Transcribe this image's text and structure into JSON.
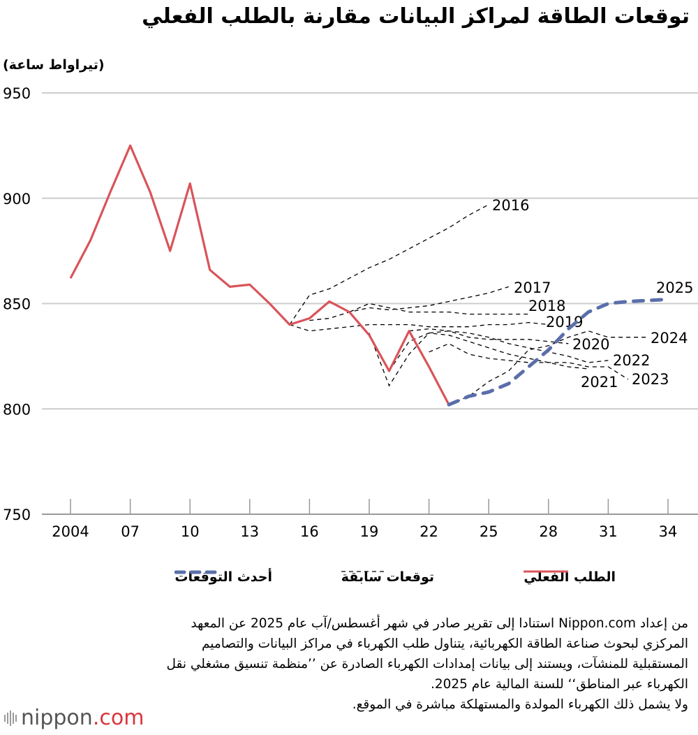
{
  "title": "توقعات الطاقة لمراكز البيانات مقارنة بالطلب الفعلي",
  "unit_label": "(تيراواط ساعة)",
  "chart_data": {
    "type": "line",
    "title": "توقعات الطاقة لمراكز البيانات مقارنة بالطلب الفعلي",
    "ylabel": "(تيراواط ساعة)",
    "ylim": [
      750,
      950
    ],
    "yticks": [
      950,
      900,
      850,
      800,
      750
    ],
    "xlim": [
      2002.9,
      2035.5
    ],
    "xticks": [
      2004,
      2007,
      2010,
      2013,
      2016,
      2019,
      2022,
      2025,
      2028,
      2031,
      2034
    ],
    "xtick_labels": [
      "2004",
      "07",
      "10",
      "13",
      "16",
      "19",
      "22",
      "25",
      "28",
      "31",
      "34"
    ],
    "grid": "horizontal",
    "colors": {
      "actual": "#d9545a",
      "latest": "#5a6eaa",
      "previous": "#000000",
      "grid": "#cccccc"
    },
    "actual": {
      "name": "الطلب الفعلي",
      "x": [
        2004,
        2005,
        2006,
        2007,
        2008,
        2009,
        2010,
        2011,
        2012,
        2013,
        2014,
        2015,
        2016,
        2017,
        2018,
        2019,
        2020,
        2021,
        2022,
        2023
      ],
      "y": [
        862,
        880,
        903,
        925,
        903,
        875,
        907,
        866,
        858,
        859,
        850,
        840,
        843,
        851,
        846,
        835,
        818,
        837,
        820,
        802
      ]
    },
    "latest": {
      "name": "أحدث التوقعات",
      "label": "2025",
      "x": [
        2023,
        2024,
        2025,
        2026,
        2027,
        2028,
        2029,
        2030,
        2031,
        2032,
        2033,
        2034
      ],
      "y": [
        802,
        806,
        808,
        812,
        820,
        828,
        838,
        846,
        850,
        851,
        851.5,
        852
      ]
    },
    "previous_name": "توقعات سابقة",
    "previous": [
      {
        "label": "2016",
        "x": [
          2015,
          2016,
          2017,
          2018,
          2019,
          2020,
          2021,
          2022,
          2023,
          2024,
          2025
        ],
        "y": [
          840,
          854,
          857,
          862,
          867,
          871,
          876,
          881,
          886,
          892,
          897
        ]
      },
      {
        "label": "2017",
        "x": [
          2016,
          2017,
          2018,
          2019,
          2020,
          2021,
          2022,
          2023,
          2024,
          2025,
          2026
        ],
        "y": [
          842,
          843,
          846,
          848,
          847,
          848,
          849,
          851,
          853,
          855,
          858
        ]
      },
      {
        "label": "2018",
        "x": [
          2017,
          2018,
          2019,
          2020,
          2021,
          2022,
          2023,
          2024,
          2025,
          2026,
          2027
        ],
        "y": [
          851,
          846,
          850,
          848,
          846,
          846,
          846,
          845,
          845,
          845,
          845
        ]
      },
      {
        "label": "2019",
        "x": [
          2015,
          2016,
          2017,
          2018,
          2019,
          2020,
          2021,
          2022,
          2023,
          2024,
          2025,
          2026,
          2027,
          2028
        ],
        "y": [
          840,
          837,
          838,
          839,
          840,
          840,
          840,
          839,
          839,
          839,
          840,
          840,
          841,
          840
        ]
      },
      {
        "label": "2020",
        "x": [
          2019,
          2020,
          2021,
          2022,
          2023,
          2024,
          2025,
          2026,
          2027,
          2028,
          2029
        ],
        "y": [
          836,
          811,
          826,
          836,
          837,
          834,
          833,
          833,
          833,
          832,
          831
        ]
      },
      {
        "label": "2021",
        "x": [
          2020,
          2021,
          2022,
          2023,
          2024,
          2025,
          2026,
          2027,
          2028,
          2029,
          2030
        ],
        "y": [
          818,
          832,
          836,
          835,
          832,
          829,
          826,
          824,
          822,
          820,
          819
        ]
      },
      {
        "label": "2022",
        "x": [
          2021,
          2022,
          2023,
          2024,
          2025,
          2026,
          2027,
          2028,
          2029,
          2030,
          2031
        ],
        "y": [
          837,
          838,
          837,
          836,
          834,
          831,
          829,
          827,
          825,
          822,
          823
        ]
      },
      {
        "label": "2023",
        "x": [
          2022,
          2023,
          2024,
          2025,
          2026,
          2027,
          2028,
          2029,
          2030,
          2031,
          2032
        ],
        "y": [
          827,
          831,
          826,
          824,
          823,
          822,
          822,
          822,
          820,
          820,
          814
        ]
      },
      {
        "label": "2024",
        "x": [
          2023,
          2024,
          2025,
          2026,
          2027,
          2028,
          2029,
          2030,
          2031,
          2032,
          2033
        ],
        "y": [
          802,
          806,
          813,
          818,
          828,
          830,
          834,
          837,
          834,
          834,
          834
        ]
      }
    ]
  },
  "legend": {
    "actual": "الطلب الفعلي",
    "previous": "توقعات سابقة",
    "latest": "أحدث التوقعات"
  },
  "notes": [
    "من إعداد Nippon.com استنادا إلى تقرير صادر في شهر أغسطس/آب عام 2025 عن المعهد",
    "المركزي لبحوث صناعة الطاقة الكهربائية، يتناول طلب الكهرباء في مراكز البيانات والتصاميم",
    "المستقبلية للمنشآت، ويستند إلى بيانات إمدادات الكهرباء الصادرة عن ’’منظمة تنسيق مشغلي نقل",
    "الكهرباء عبر المناطق‘‘ للسنة المالية عام 2025.",
    "ولا يشمل ذلك الكهرباء المولدة والمستهلكة مباشرة في الموقع."
  ],
  "logo": {
    "name": "nippon",
    "suffix": ".com"
  }
}
